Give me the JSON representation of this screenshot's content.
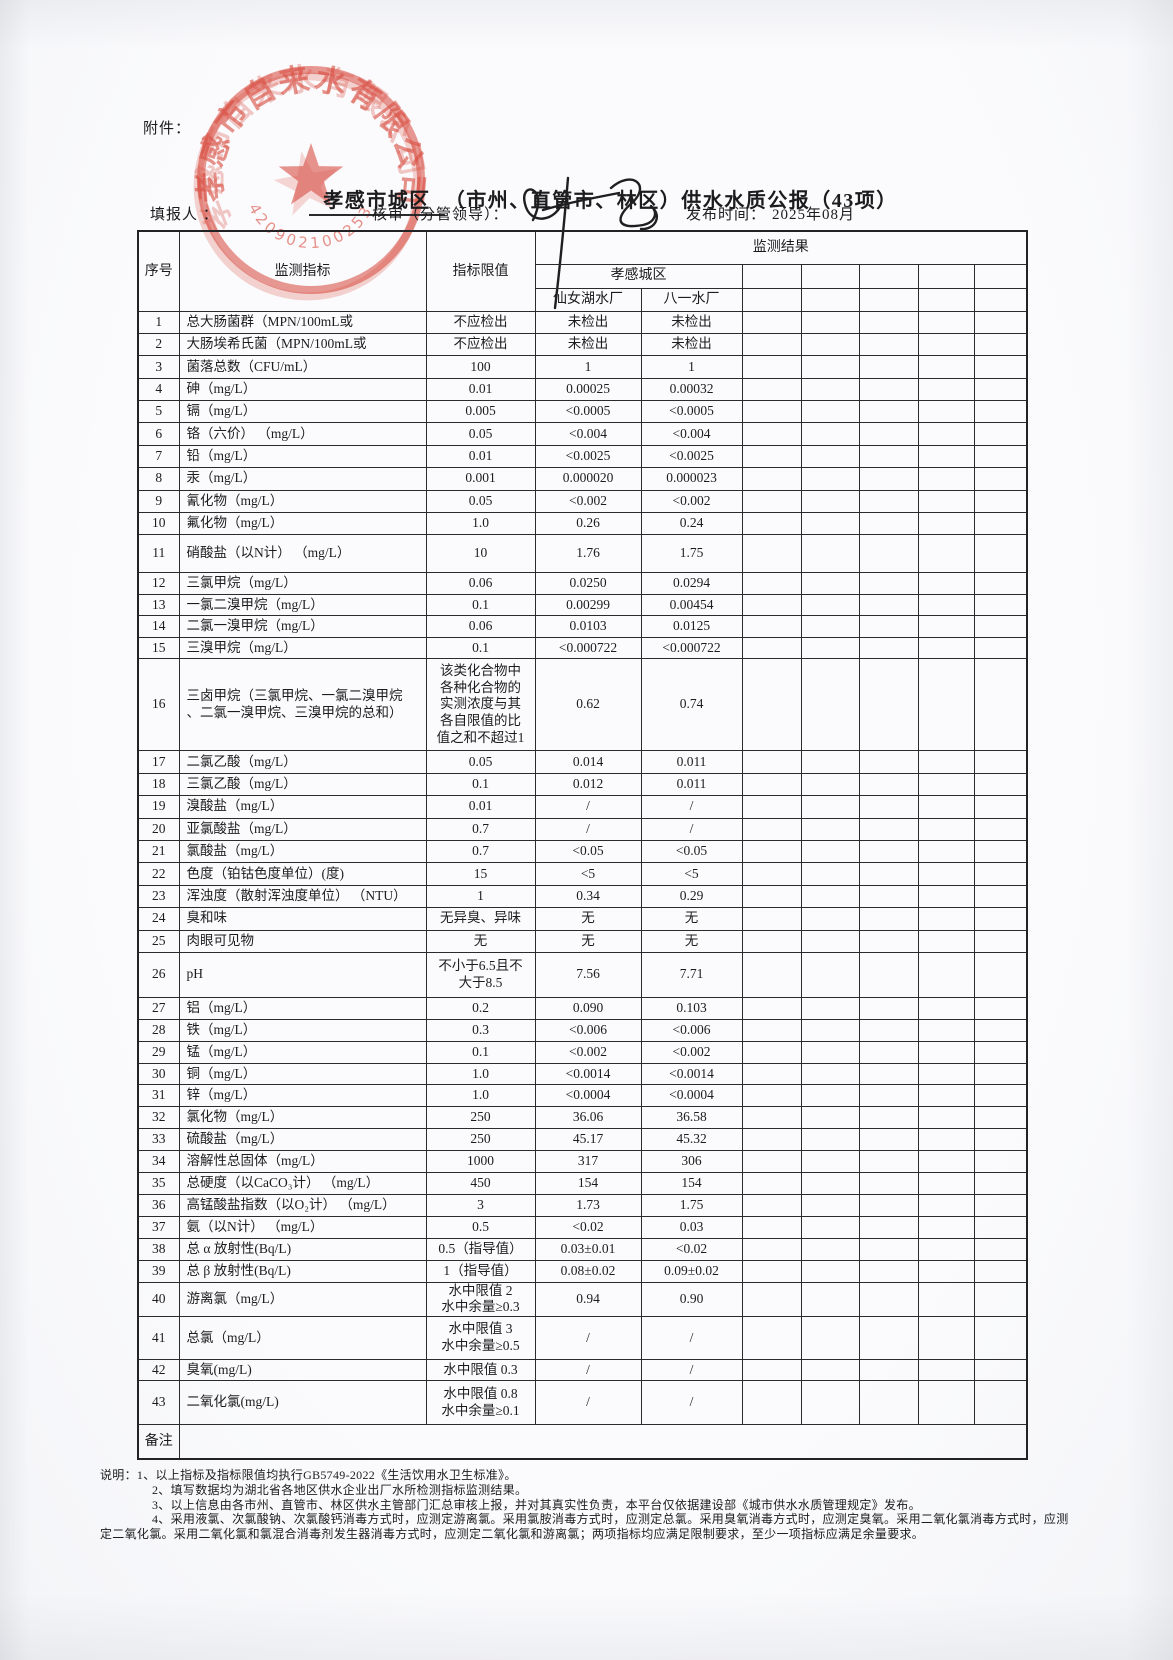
{
  "page": {
    "attachment_label": "附件：",
    "title_underlined": "孝感市城区",
    "title_rest": "（市州、直管市、林区）供水水质公报（43项）",
    "filler_label": "填报人 ：",
    "reviewer_label": "核审（分管领导）：",
    "publish_label": "发布时间：",
    "publish_value": "2025年08月"
  },
  "stamp": {
    "company": "孝感市自来水有限公司",
    "number": "42090210025321",
    "color": "#d94f43"
  },
  "table": {
    "headers": {
      "seq": "序号",
      "indicator": "监测指标",
      "limit": "指标限值",
      "result": "监测结果",
      "district": "孝感城区",
      "plant1": "仙女湖水厂",
      "plant2": "八一水厂"
    },
    "remark_label": "备注",
    "rows": [
      {
        "no": "1",
        "indicator": "总大肠菌群（MPN/100mL或",
        "limit": "不应检出",
        "v1": "未检出",
        "v2": "未检出"
      },
      {
        "no": "2",
        "indicator": "大肠埃希氏菌（MPN/100mL或",
        "limit": "不应检出",
        "v1": "未检出",
        "v2": "未检出"
      },
      {
        "no": "3",
        "indicator": "菌落总数（CFU/mL）",
        "limit": "100",
        "v1": "1",
        "v2": "1"
      },
      {
        "no": "4",
        "indicator": "砷（mg/L）",
        "limit": "0.01",
        "v1": "0.00025",
        "v2": "0.00032"
      },
      {
        "no": "5",
        "indicator": "镉（mg/L）",
        "limit": "0.005",
        "v1": "<0.0005",
        "v2": "<0.0005"
      },
      {
        "no": "6",
        "indicator": "铬（六价） （mg/L）",
        "limit": "0.05",
        "v1": "<0.004",
        "v2": "<0.004"
      },
      {
        "no": "7",
        "indicator": "铅（mg/L）",
        "limit": "0.01",
        "v1": "<0.0025",
        "v2": "<0.0025"
      },
      {
        "no": "8",
        "indicator": "汞（mg/L）",
        "limit": "0.001",
        "v1": "0.000020",
        "v2": "0.000023"
      },
      {
        "no": "9",
        "indicator": "氰化物（mg/L）",
        "limit": "0.05",
        "v1": "<0.002",
        "v2": "<0.002"
      },
      {
        "no": "10",
        "indicator": "氟化物（mg/L）",
        "limit": "1.0",
        "v1": "0.26",
        "v2": "0.24"
      },
      {
        "no": "11",
        "indicator": "硝酸盐（以N计） （mg/L）",
        "limit": "10",
        "v1": "1.76",
        "v2": "1.75"
      },
      {
        "no": "12",
        "indicator": "三氯甲烷（mg/L）",
        "limit": "0.06",
        "v1": "0.0250",
        "v2": "0.0294"
      },
      {
        "no": "13",
        "indicator": "一氯二溴甲烷（mg/L）",
        "limit": "0.1",
        "v1": "0.00299",
        "v2": "0.00454"
      },
      {
        "no": "14",
        "indicator": "二氯一溴甲烷（mg/L）",
        "limit": "0.06",
        "v1": "0.0103",
        "v2": "0.0125"
      },
      {
        "no": "15",
        "indicator": "三溴甲烷（mg/L）",
        "limit": "0.1",
        "v1": "<0.000722",
        "v2": "<0.000722"
      },
      {
        "no": "16",
        "indicator": "三卤甲烷（三氯甲烷、一氯二溴甲烷\n、二氯一溴甲烷、三溴甲烷的总和）",
        "limit": "该类化合物中\n各种化合物的\n实测浓度与其\n各自限值的比\n值之和不超过1",
        "v1": "0.62",
        "v2": "0.74"
      },
      {
        "no": "17",
        "indicator": "二氯乙酸（mg/L）",
        "limit": "0.05",
        "v1": "0.014",
        "v2": "0.011"
      },
      {
        "no": "18",
        "indicator": "三氯乙酸（mg/L）",
        "limit": "0.1",
        "v1": "0.012",
        "v2": "0.011"
      },
      {
        "no": "19",
        "indicator": "溴酸盐（mg/L）",
        "limit": "0.01",
        "v1": "/",
        "v2": "/"
      },
      {
        "no": "20",
        "indicator": "亚氯酸盐（mg/L）",
        "limit": "0.7",
        "v1": "/",
        "v2": "/"
      },
      {
        "no": "21",
        "indicator": "氯酸盐（mg/L）",
        "limit": "0.7",
        "v1": "<0.05",
        "v2": "<0.05"
      },
      {
        "no": "22",
        "indicator": "色度（铂钴色度单位）(度)",
        "limit": "15",
        "v1": "<5",
        "v2": "<5"
      },
      {
        "no": "23",
        "indicator": "浑浊度（散射浑浊度单位） （NTU）",
        "limit": "1",
        "v1": "0.34",
        "v2": "0.29"
      },
      {
        "no": "24",
        "indicator": "臭和味",
        "limit": "无异臭、异味",
        "v1": "无",
        "v2": "无"
      },
      {
        "no": "25",
        "indicator": "肉眼可见物",
        "limit": "无",
        "v1": "无",
        "v2": "无"
      },
      {
        "no": "26",
        "indicator": "pH",
        "limit": "不小于6.5且不\n大于8.5",
        "v1": "7.56",
        "v2": "7.71"
      },
      {
        "no": "27",
        "indicator": "铝（mg/L）",
        "limit": "0.2",
        "v1": "0.090",
        "v2": "0.103"
      },
      {
        "no": "28",
        "indicator": "铁（mg/L）",
        "limit": "0.3",
        "v1": "<0.006",
        "v2": "<0.006"
      },
      {
        "no": "29",
        "indicator": "锰（mg/L）",
        "limit": "0.1",
        "v1": "<0.002",
        "v2": "<0.002"
      },
      {
        "no": "30",
        "indicator": "铜（mg/L）",
        "limit": "1.0",
        "v1": "<0.0014",
        "v2": "<0.0014"
      },
      {
        "no": "31",
        "indicator": "锌（mg/L）",
        "limit": "1.0",
        "v1": "<0.0004",
        "v2": "<0.0004"
      },
      {
        "no": "32",
        "indicator": "氯化物（mg/L）",
        "limit": "250",
        "v1": "36.06",
        "v2": "36.58"
      },
      {
        "no": "33",
        "indicator": "硫酸盐（mg/L）",
        "limit": "250",
        "v1": "45.17",
        "v2": "45.32"
      },
      {
        "no": "34",
        "indicator": "溶解性总固体（mg/L）",
        "limit": "1000",
        "v1": "317",
        "v2": "306"
      },
      {
        "no": "35",
        "indicator": "总硬度（以CaCO₃计） （mg/L）",
        "limit": "450",
        "v1": "154",
        "v2": "154"
      },
      {
        "no": "36",
        "indicator": "高锰酸盐指数（以O₂计） （mg/L）",
        "limit": "3",
        "v1": "1.73",
        "v2": "1.75"
      },
      {
        "no": "37",
        "indicator": "氨（以N计） （mg/L）",
        "limit": "0.5",
        "v1": "<0.02",
        "v2": "0.03"
      },
      {
        "no": "38",
        "indicator": "总 α 放射性(Bq/L)",
        "limit": "0.5（指导值）",
        "v1": "0.03±0.01",
        "v2": "<0.02"
      },
      {
        "no": "39",
        "indicator": "总 β 放射性(Bq/L)",
        "limit": "1（指导值）",
        "v1": "0.08±0.02",
        "v2": "0.09±0.02"
      },
      {
        "no": "40",
        "indicator": "游离氯（mg/L）",
        "limit": "水中限值 2\n水中余量≥0.3",
        "v1": "0.94",
        "v2": "0.90"
      },
      {
        "no": "41",
        "indicator": "总氯（mg/L）",
        "limit": "水中限值 3\n水中余量≥0.5",
        "v1": "/",
        "v2": "/"
      },
      {
        "no": "42",
        "indicator": "臭氧(mg/L)",
        "limit": "水中限值 0.3",
        "v1": "/",
        "v2": "/"
      },
      {
        "no": "43",
        "indicator": "二氧化氯(mg/L)",
        "limit": "水中限值 0.8\n水中余量≥0.1",
        "v1": "/",
        "v2": "/"
      }
    ]
  },
  "notes": {
    "line1": "说明：1、以上指标及指标限值均执行GB5749-2022《生活饮用水卫生标准》。",
    "line2": "2、填写数据均为湖北省各地区供水企业出厂水所检测指标监测结果。",
    "line3": "3、以上信息由各市州、直管市、林区供水主管部门汇总审核上报，并对其真实性负责，本平台仅依据建设部《城市供水水质管理规定》发布。",
    "line4": "4、采用液氯、次氯酸钠、次氯酸钙消毒方式时，应测定游离氯。采用氯胺消毒方式时，应测定总氯。采用臭氧消毒方式时，应测定臭氧。采用二氧化氯消毒方式时，应测定二氧化氯。采用二氧化氯和氯混合消毒剂发生器消毒方式时，应测定二氧化氯和游离氯；两项指标均应满足限制要求，至少一项指标应满足余量要求。"
  }
}
